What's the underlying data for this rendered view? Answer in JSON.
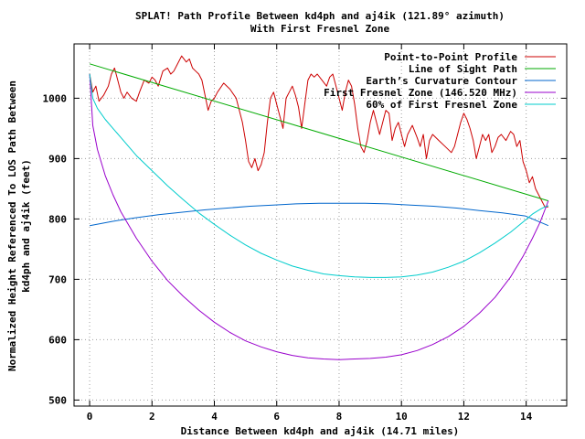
{
  "chart_data": {
    "type": "line",
    "title": "SPLAT! Path Profile Between kd4ph and aj4ik (121.89° azimuth)",
    "subtitle": "With First Fresnel Zone",
    "xlabel": "Distance Between kd4ph and aj4ik (14.71 miles)",
    "ylabel_line1": "Normalized Height Referenced To LOS Path Between",
    "ylabel_line2": "kd4ph and aj4ik (feet)",
    "xlim": [
      -0.5,
      15.3
    ],
    "ylim": [
      490,
      1090
    ],
    "x_ticks": [
      0,
      2,
      4,
      6,
      8,
      10,
      12,
      14
    ],
    "y_ticks": [
      500,
      600,
      700,
      800,
      900,
      1000
    ],
    "grid": true,
    "legend_position": "top-right",
    "path_length_miles": 14.71,
    "series": [
      {
        "name": "Point-to-Point Profile",
        "color": "#cc0000",
        "x": [
          0.0,
          0.1,
          0.2,
          0.3,
          0.45,
          0.6,
          0.7,
          0.8,
          0.9,
          1.0,
          1.1,
          1.2,
          1.35,
          1.5,
          1.6,
          1.75,
          1.9,
          2.0,
          2.1,
          2.2,
          2.35,
          2.5,
          2.6,
          2.7,
          2.8,
          2.95,
          3.1,
          3.2,
          3.3,
          3.4,
          3.5,
          3.6,
          3.7,
          3.8,
          3.9,
          4.0,
          4.1,
          4.3,
          4.5,
          4.7,
          4.8,
          4.9,
          5.0,
          5.1,
          5.2,
          5.3,
          5.4,
          5.5,
          5.6,
          5.7,
          5.8,
          5.9,
          6.0,
          6.1,
          6.2,
          6.3,
          6.4,
          6.5,
          6.6,
          6.7,
          6.8,
          6.9,
          7.0,
          7.1,
          7.2,
          7.3,
          7.45,
          7.6,
          7.7,
          7.8,
          7.9,
          8.0,
          8.1,
          8.2,
          8.3,
          8.4,
          8.5,
          8.6,
          8.7,
          8.8,
          8.9,
          9.0,
          9.1,
          9.2,
          9.3,
          9.4,
          9.5,
          9.6,
          9.7,
          9.8,
          9.9,
          10.0,
          10.1,
          10.2,
          10.35,
          10.5,
          10.6,
          10.7,
          10.8,
          10.9,
          11.0,
          11.2,
          11.4,
          11.6,
          11.7,
          11.8,
          11.9,
          12.0,
          12.1,
          12.2,
          12.3,
          12.4,
          12.5,
          12.6,
          12.7,
          12.8,
          12.9,
          13.0,
          13.1,
          13.2,
          13.35,
          13.5,
          13.6,
          13.7,
          13.8,
          13.9,
          14.0,
          14.1,
          14.2,
          14.3,
          14.4,
          14.5,
          14.6,
          14.71
        ],
        "y": [
          1040,
          1010,
          1020,
          995,
          1005,
          1020,
          1040,
          1050,
          1030,
          1010,
          1000,
          1010,
          1000,
          995,
          1010,
          1030,
          1025,
          1035,
          1030,
          1020,
          1045,
          1050,
          1040,
          1045,
          1055,
          1070,
          1060,
          1065,
          1050,
          1045,
          1040,
          1030,
          1005,
          980,
          995,
          1000,
          1010,
          1025,
          1015,
          1000,
          980,
          960,
          930,
          895,
          885,
          900,
          880,
          890,
          910,
          960,
          1000,
          1010,
          990,
          970,
          950,
          1000,
          1010,
          1020,
          1005,
          985,
          950,
          990,
          1030,
          1040,
          1035,
          1040,
          1030,
          1020,
          1035,
          1040,
          1020,
          1000,
          980,
          1010,
          1030,
          1020,
          990,
          950,
          920,
          910,
          930,
          960,
          980,
          960,
          940,
          960,
          980,
          975,
          930,
          950,
          960,
          940,
          920,
          940,
          955,
          935,
          920,
          940,
          900,
          930,
          940,
          930,
          920,
          910,
          920,
          940,
          960,
          975,
          965,
          950,
          930,
          900,
          920,
          940,
          930,
          940,
          910,
          920,
          935,
          940,
          930,
          945,
          940,
          920,
          930,
          895,
          880,
          860,
          870,
          850,
          840,
          830,
          820,
          820
        ]
      },
      {
        "name": "Line of Sight Path",
        "color": "#00aa00",
        "x": [
          0,
          14.71
        ],
        "y": [
          1057,
          830
        ]
      },
      {
        "name": "Earth’s Curvature Contour",
        "color": "#0066cc",
        "x": [
          0.0,
          0.74,
          1.47,
          2.21,
          2.94,
          3.68,
          4.41,
          5.15,
          5.88,
          6.62,
          7.36,
          8.09,
          8.83,
          9.56,
          10.3,
          11.03,
          11.77,
          12.5,
          13.24,
          13.97,
          14.71
        ],
        "y": [
          789,
          796,
          802,
          807,
          811,
          815,
          818,
          821,
          823,
          825,
          826,
          826,
          826,
          825,
          823,
          821,
          818,
          814,
          810,
          805,
          789
        ]
      },
      {
        "name": "First Fresnel Zone (146.520 MHz)",
        "color": "#9900cc",
        "x": [
          0.0,
          0.1,
          0.25,
          0.5,
          0.75,
          1.0,
          1.5,
          2.0,
          2.5,
          3.0,
          3.5,
          4.0,
          4.5,
          5.0,
          5.5,
          6.0,
          6.5,
          7.0,
          7.5,
          8.0,
          8.5,
          9.0,
          9.5,
          10.0,
          10.5,
          11.0,
          11.5,
          12.0,
          12.5,
          13.0,
          13.5,
          13.9,
          14.2,
          14.45,
          14.6,
          14.71
        ],
        "y": [
          1040,
          955,
          915,
          872,
          840,
          812,
          768,
          730,
          698,
          672,
          649,
          629,
          612,
          598,
          588,
          580,
          574,
          570,
          568,
          567,
          568,
          569,
          571,
          575,
          582,
          592,
          605,
          622,
          644,
          670,
          704,
          738,
          768,
          795,
          815,
          830
        ]
      },
      {
        "name": "60% of First Fresnel Zone",
        "color": "#00cccc",
        "x": [
          0.0,
          0.1,
          0.25,
          0.5,
          0.75,
          1.0,
          1.5,
          2.0,
          2.5,
          3.0,
          3.5,
          4.0,
          4.5,
          5.0,
          5.5,
          6.0,
          6.5,
          7.0,
          7.5,
          8.0,
          8.5,
          9.0,
          9.5,
          10.0,
          10.5,
          11.0,
          11.5,
          12.0,
          12.5,
          13.0,
          13.5,
          13.9,
          14.2,
          14.45,
          14.6,
          14.71
        ],
        "y": [
          1040,
          1000,
          983,
          965,
          950,
          935,
          905,
          880,
          855,
          832,
          810,
          791,
          773,
          757,
          743,
          732,
          722,
          715,
          709,
          706,
          704,
          703,
          703,
          704,
          707,
          712,
          720,
          730,
          744,
          760,
          778,
          795,
          808,
          816,
          820,
          822
        ]
      }
    ]
  }
}
